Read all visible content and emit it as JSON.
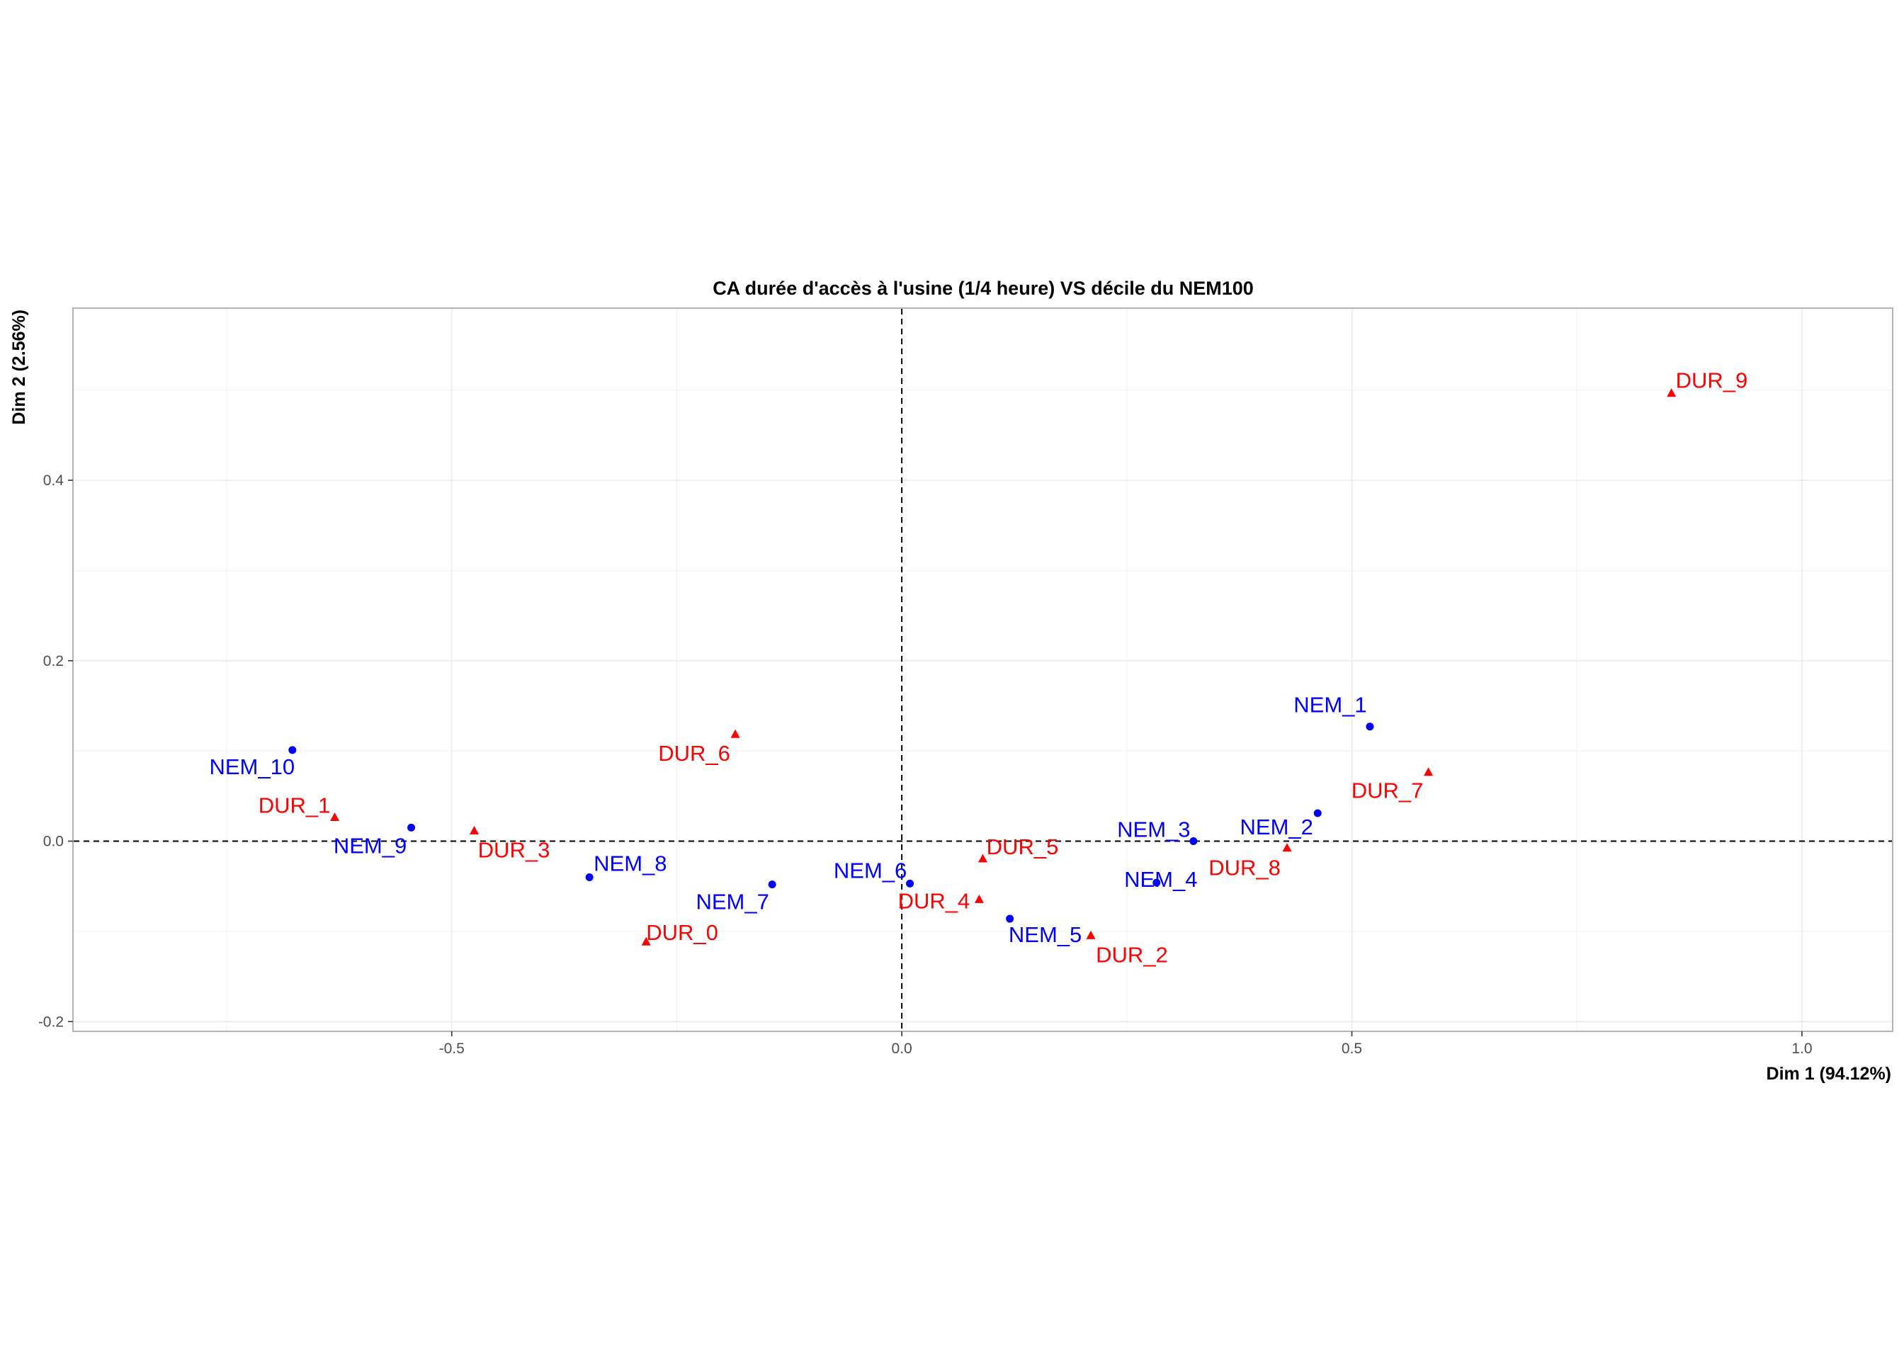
{
  "chart_data": {
    "type": "scatter",
    "title": "CA durée d'accès à l'usine (1/4 heure) VS décile du NEM100",
    "xlabel": "Dim 1 (94.12%)",
    "ylabel": "Dim 2 (2.56%)",
    "xlim": [
      -0.92,
      1.1
    ],
    "ylim": [
      -0.21,
      0.59
    ],
    "x_ticks": [
      -0.5,
      0.0,
      0.5,
      1.0
    ],
    "x_tick_labels": [
      "-0.5",
      "0.0",
      "0.5",
      "1.0"
    ],
    "y_ticks": [
      -0.2,
      0.0,
      0.2,
      0.4
    ],
    "y_tick_labels": [
      "-0.2",
      "0.0",
      "0.2",
      "0.4"
    ],
    "grid": true,
    "reference_lines": {
      "x": 0,
      "y": 0,
      "style": "dashed"
    },
    "colors": {
      "NEM": "#0000ff",
      "DUR": "#ff0000"
    },
    "series": [
      {
        "marker": "circle",
        "color": "#0000ff",
        "points": [
          {
            "label": "NEM_1",
            "x": 0.52,
            "y": 0.127
          },
          {
            "label": "NEM_2",
            "x": 0.462,
            "y": 0.031
          },
          {
            "label": "NEM_3",
            "x": 0.324,
            "y": 0.0
          },
          {
            "label": "NEM_4",
            "x": 0.283,
            "y": -0.046
          },
          {
            "label": "NEM_5",
            "x": 0.12,
            "y": -0.086
          },
          {
            "label": "NEM_6",
            "x": 0.009,
            "y": -0.047
          },
          {
            "label": "NEM_7",
            "x": -0.144,
            "y": -0.048
          },
          {
            "label": "NEM_8",
            "x": -0.347,
            "y": -0.04
          },
          {
            "label": "NEM_9",
            "x": -0.545,
            "y": 0.015
          },
          {
            "label": "NEM_10",
            "x": -0.677,
            "y": 0.101
          }
        ]
      },
      {
        "marker": "triangle",
        "color": "#ff0000",
        "points": [
          {
            "label": "DUR_0",
            "x": -0.284,
            "y": -0.112
          },
          {
            "label": "DUR_1",
            "x": -0.63,
            "y": 0.026
          },
          {
            "label": "DUR_2",
            "x": 0.21,
            "y": -0.105
          },
          {
            "label": "DUR_3",
            "x": -0.475,
            "y": 0.011
          },
          {
            "label": "DUR_4",
            "x": 0.086,
            "y": -0.065
          },
          {
            "label": "DUR_5",
            "x": 0.09,
            "y": -0.02
          },
          {
            "label": "DUR_6",
            "x": -0.185,
            "y": 0.118
          },
          {
            "label": "DUR_7",
            "x": 0.585,
            "y": 0.076
          },
          {
            "label": "DUR_8",
            "x": 0.428,
            "y": -0.008
          },
          {
            "label": "DUR_9",
            "x": 0.855,
            "y": 0.496
          }
        ]
      }
    ]
  }
}
